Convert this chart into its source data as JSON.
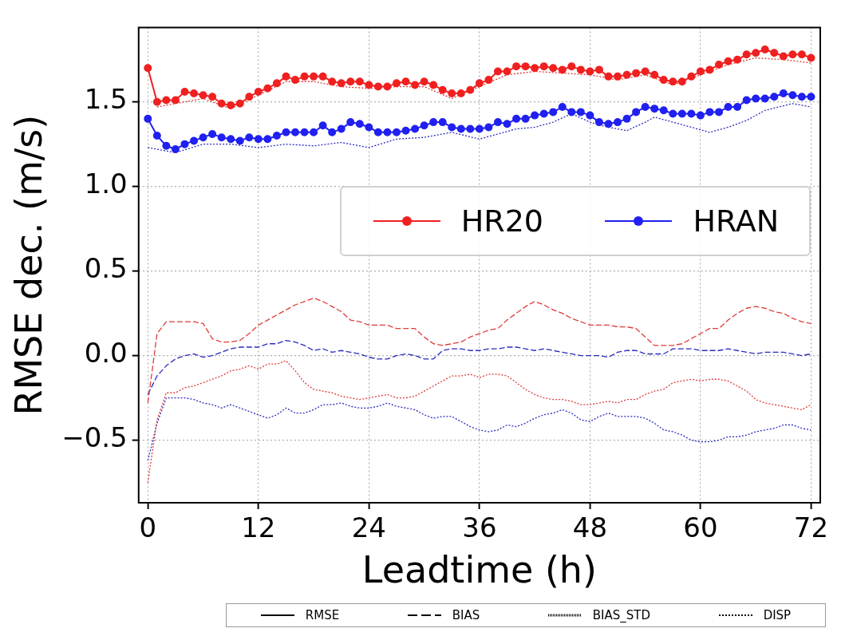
{
  "chart_data": {
    "type": "line",
    "xlabel": "Leadtime (h)",
    "ylabel": "RMSE dec. (m/s)",
    "xlim": [
      -1,
      73
    ],
    "xticks": [
      0,
      12,
      24,
      36,
      48,
      60,
      72
    ],
    "ylim": [
      -0.87,
      1.94
    ],
    "yticks": [
      {
        "value": -0.5,
        "label": "−0.5"
      },
      {
        "value": 0,
        "label": "0.0"
      },
      {
        "value": 0.5,
        "label": "0.5"
      },
      {
        "value": 1,
        "label": "1.0"
      },
      {
        "value": 1.5,
        "label": "1.5"
      }
    ],
    "grid": true,
    "legend": "center right",
    "annotations": [
      "RMSE",
      "BIAS",
      "BIAS_STD",
      "DISP"
    ],
    "series": [
      {
        "name": "HR20",
        "color": "#f02020",
        "line_style": "solid",
        "marker": "circle",
        "x": [
          0,
          1,
          2,
          3,
          4,
          5,
          6,
          7,
          8,
          9,
          10,
          11,
          12,
          13,
          14,
          15,
          16,
          17,
          18,
          19,
          20,
          21,
          22,
          23,
          24,
          25,
          26,
          27,
          28,
          29,
          30,
          31,
          32,
          33,
          34,
          35,
          36,
          37,
          38,
          39,
          40,
          41,
          42,
          43,
          44,
          45,
          46,
          47,
          48,
          49,
          50,
          51,
          52,
          53,
          54,
          55,
          56,
          57,
          58,
          59,
          60,
          61,
          62,
          63,
          64,
          65,
          66,
          67,
          68,
          69,
          70,
          71,
          72
        ],
        "values": [
          1.7,
          1.5,
          1.51,
          1.51,
          1.56,
          1.55,
          1.54,
          1.53,
          1.49,
          1.48,
          1.49,
          1.53,
          1.56,
          1.58,
          1.61,
          1.65,
          1.63,
          1.65,
          1.65,
          1.65,
          1.62,
          1.61,
          1.62,
          1.62,
          1.6,
          1.59,
          1.59,
          1.61,
          1.62,
          1.6,
          1.62,
          1.6,
          1.57,
          1.55,
          1.55,
          1.57,
          1.61,
          1.63,
          1.68,
          1.68,
          1.71,
          1.71,
          1.7,
          1.71,
          1.7,
          1.69,
          1.71,
          1.69,
          1.68,
          1.69,
          1.65,
          1.65,
          1.66,
          1.67,
          1.68,
          1.66,
          1.63,
          1.62,
          1.62,
          1.65,
          1.68,
          1.69,
          1.72,
          1.74,
          1.75,
          1.78,
          1.79,
          1.81,
          1.79,
          1.77,
          1.78,
          1.78,
          1.76
        ]
      },
      {
        "name": "HRAN",
        "color": "#2020f0",
        "line_style": "solid",
        "marker": "circle",
        "x": [
          0,
          1,
          2,
          3,
          4,
          5,
          6,
          7,
          8,
          9,
          10,
          11,
          12,
          13,
          14,
          15,
          16,
          17,
          18,
          19,
          20,
          21,
          22,
          23,
          24,
          25,
          26,
          27,
          28,
          29,
          30,
          31,
          32,
          33,
          34,
          35,
          36,
          37,
          38,
          39,
          40,
          41,
          42,
          43,
          44,
          45,
          46,
          47,
          48,
          49,
          50,
          51,
          52,
          53,
          54,
          55,
          56,
          57,
          58,
          59,
          60,
          61,
          62,
          63,
          64,
          65,
          66,
          67,
          68,
          69,
          70,
          71,
          72
        ],
        "values": [
          1.4,
          1.3,
          1.24,
          1.22,
          1.25,
          1.27,
          1.29,
          1.31,
          1.29,
          1.28,
          1.27,
          1.29,
          1.28,
          1.28,
          1.3,
          1.32,
          1.32,
          1.32,
          1.32,
          1.36,
          1.32,
          1.34,
          1.38,
          1.37,
          1.35,
          1.32,
          1.32,
          1.32,
          1.33,
          1.34,
          1.36,
          1.38,
          1.38,
          1.35,
          1.34,
          1.34,
          1.34,
          1.35,
          1.38,
          1.37,
          1.4,
          1.4,
          1.42,
          1.43,
          1.44,
          1.47,
          1.44,
          1.44,
          1.42,
          1.38,
          1.37,
          1.38,
          1.4,
          1.44,
          1.47,
          1.46,
          1.45,
          1.43,
          1.43,
          1.43,
          1.42,
          1.44,
          1.44,
          1.47,
          1.47,
          1.51,
          1.52,
          1.52,
          1.53,
          1.55,
          1.54,
          1.53,
          1.53
        ]
      },
      {
        "color": "#e03a3a",
        "line_style": "dashed",
        "marker": "none",
        "x": [
          0,
          1,
          2,
          3,
          4,
          5,
          6,
          7,
          8,
          9,
          10,
          11,
          12,
          13,
          14,
          15,
          16,
          17,
          18,
          19,
          20,
          21,
          22,
          23,
          24,
          25,
          26,
          27,
          28,
          29,
          30,
          31,
          32,
          33,
          34,
          35,
          36,
          37,
          38,
          39,
          40,
          41,
          42,
          43,
          44,
          45,
          46,
          47,
          48,
          49,
          50,
          51,
          52,
          53,
          54,
          55,
          56,
          57,
          58,
          59,
          60,
          61,
          62,
          63,
          64,
          65,
          66,
          67,
          68,
          69,
          70,
          71,
          72
        ],
        "values": [
          -0.28,
          0.13,
          0.2,
          0.2,
          0.2,
          0.2,
          0.19,
          0.1,
          0.08,
          0.08,
          0.09,
          0.13,
          0.18,
          0.21,
          0.24,
          0.27,
          0.3,
          0.32,
          0.34,
          0.32,
          0.29,
          0.26,
          0.21,
          0.2,
          0.18,
          0.18,
          0.18,
          0.16,
          0.16,
          0.16,
          0.11,
          0.07,
          0.06,
          0.07,
          0.08,
          0.11,
          0.13,
          0.15,
          0.16,
          0.21,
          0.25,
          0.29,
          0.32,
          0.3,
          0.27,
          0.25,
          0.22,
          0.2,
          0.18,
          0.18,
          0.18,
          0.17,
          0.17,
          0.16,
          0.11,
          0.06,
          0.06,
          0.06,
          0.07,
          0.1,
          0.13,
          0.16,
          0.16,
          0.21,
          0.25,
          0.28,
          0.29,
          0.28,
          0.26,
          0.25,
          0.22,
          0.2,
          0.19
        ]
      },
      {
        "color": "#2a2ac0",
        "line_style": "dashed",
        "marker": "none",
        "x": [
          0,
          1,
          2,
          3,
          4,
          5,
          6,
          7,
          8,
          9,
          10,
          11,
          12,
          13,
          14,
          15,
          16,
          17,
          18,
          19,
          20,
          21,
          22,
          23,
          24,
          25,
          26,
          27,
          28,
          29,
          30,
          31,
          32,
          33,
          34,
          35,
          36,
          37,
          38,
          39,
          40,
          41,
          42,
          43,
          44,
          45,
          46,
          47,
          48,
          49,
          50,
          51,
          52,
          53,
          54,
          55,
          56,
          57,
          58,
          59,
          60,
          61,
          62,
          63,
          64,
          65,
          66,
          67,
          68,
          69,
          70,
          71,
          72
        ],
        "values": [
          -0.23,
          -0.12,
          -0.06,
          -0.02,
          0.0,
          0.01,
          -0.01,
          0.0,
          0.02,
          0.04,
          0.05,
          0.05,
          0.05,
          0.07,
          0.07,
          0.09,
          0.08,
          0.06,
          0.03,
          0.04,
          0.02,
          0.03,
          0.02,
          0.01,
          -0.01,
          -0.02,
          -0.02,
          0.0,
          0.01,
          0.0,
          -0.02,
          -0.02,
          0.03,
          0.04,
          0.04,
          0.03,
          0.03,
          0.04,
          0.04,
          0.05,
          0.05,
          0.04,
          0.03,
          0.04,
          0.03,
          0.02,
          0.01,
          0.0,
          0.0,
          0.0,
          -0.01,
          0.02,
          0.03,
          0.03,
          0.01,
          0.01,
          0.01,
          0.04,
          0.04,
          0.04,
          0.03,
          0.03,
          0.03,
          0.04,
          0.03,
          0.02,
          0.01,
          0.02,
          0.02,
          0.02,
          0.01,
          0.0,
          0.01
        ]
      },
      {
        "color": "#e03a3a",
        "line_style": "dotted",
        "marker": "none",
        "x": [
          1,
          3,
          6,
          9,
          12,
          15,
          18,
          21,
          24,
          27,
          30,
          33,
          36,
          39,
          42,
          45,
          48,
          51,
          54,
          57,
          60,
          63,
          66,
          69,
          72
        ],
        "values": [
          1.47,
          1.49,
          1.52,
          1.46,
          1.54,
          1.62,
          1.62,
          1.59,
          1.58,
          1.59,
          1.59,
          1.52,
          1.59,
          1.66,
          1.68,
          1.67,
          1.66,
          1.63,
          1.66,
          1.6,
          1.66,
          1.72,
          1.76,
          1.75,
          1.73
        ]
      },
      {
        "color": "#2a2ac0",
        "line_style": "dotted",
        "marker": "none",
        "x": [
          0,
          3,
          6,
          9,
          12,
          15,
          18,
          21,
          24,
          27,
          30,
          33,
          36,
          38,
          40,
          42,
          44,
          46,
          48,
          50,
          52,
          54,
          55,
          57,
          59,
          61,
          63,
          65,
          67,
          70,
          72
        ],
        "values": [
          1.23,
          1.2,
          1.25,
          1.25,
          1.23,
          1.25,
          1.24,
          1.26,
          1.23,
          1.28,
          1.29,
          1.32,
          1.28,
          1.31,
          1.34,
          1.35,
          1.38,
          1.43,
          1.38,
          1.35,
          1.33,
          1.38,
          1.41,
          1.38,
          1.35,
          1.32,
          1.35,
          1.39,
          1.45,
          1.49,
          1.47
        ]
      },
      {
        "color": "#e03a3a",
        "line_style": "dotted",
        "marker": "none",
        "x": [
          0,
          1,
          2,
          3,
          4,
          5,
          6,
          7,
          8,
          9,
          10,
          11,
          12,
          13,
          14,
          15,
          16,
          17,
          18,
          19,
          20,
          21,
          22,
          23,
          24,
          25,
          26,
          27,
          28,
          29,
          30,
          31,
          32,
          33,
          34,
          35,
          36,
          37,
          38,
          39,
          40,
          41,
          42,
          43,
          44,
          45,
          46,
          47,
          48,
          49,
          50,
          51,
          52,
          53,
          54,
          55,
          56,
          57,
          58,
          59,
          60,
          61,
          62,
          63,
          64,
          65,
          66,
          67,
          68,
          69,
          70,
          71,
          72
        ],
        "values": [
          -0.75,
          -0.38,
          -0.22,
          -0.22,
          -0.19,
          -0.18,
          -0.16,
          -0.14,
          -0.12,
          -0.09,
          -0.08,
          -0.06,
          -0.08,
          -0.05,
          -0.05,
          -0.03,
          -0.09,
          -0.16,
          -0.2,
          -0.21,
          -0.22,
          -0.24,
          -0.25,
          -0.26,
          -0.25,
          -0.24,
          -0.23,
          -0.25,
          -0.25,
          -0.24,
          -0.21,
          -0.18,
          -0.15,
          -0.12,
          -0.12,
          -0.11,
          -0.13,
          -0.11,
          -0.11,
          -0.12,
          -0.16,
          -0.2,
          -0.23,
          -0.25,
          -0.26,
          -0.26,
          -0.27,
          -0.29,
          -0.29,
          -0.28,
          -0.27,
          -0.28,
          -0.26,
          -0.26,
          -0.23,
          -0.21,
          -0.2,
          -0.16,
          -0.15,
          -0.14,
          -0.15,
          -0.14,
          -0.14,
          -0.15,
          -0.18,
          -0.21,
          -0.26,
          -0.28,
          -0.29,
          -0.3,
          -0.31,
          -0.32,
          -0.29
        ]
      },
      {
        "color": "#2a2ac0",
        "line_style": "dotted",
        "marker": "none",
        "x": [
          0,
          1,
          2,
          3,
          4,
          5,
          6,
          7,
          8,
          9,
          10,
          11,
          12,
          13,
          14,
          15,
          16,
          17,
          18,
          19,
          20,
          21,
          22,
          23,
          24,
          25,
          26,
          27,
          28,
          29,
          30,
          31,
          32,
          33,
          34,
          35,
          36,
          37,
          38,
          39,
          40,
          41,
          42,
          43,
          44,
          45,
          46,
          47,
          48,
          49,
          50,
          51,
          52,
          53,
          54,
          55,
          56,
          57,
          58,
          59,
          60,
          61,
          62,
          63,
          64,
          65,
          66,
          67,
          68,
          69,
          70,
          71,
          72
        ],
        "values": [
          -0.62,
          -0.4,
          -0.25,
          -0.25,
          -0.25,
          -0.26,
          -0.28,
          -0.29,
          -0.31,
          -0.29,
          -0.31,
          -0.33,
          -0.35,
          -0.37,
          -0.35,
          -0.31,
          -0.34,
          -0.34,
          -0.32,
          -0.29,
          -0.29,
          -0.28,
          -0.3,
          -0.31,
          -0.31,
          -0.3,
          -0.28,
          -0.3,
          -0.31,
          -0.32,
          -0.35,
          -0.37,
          -0.36,
          -0.36,
          -0.39,
          -0.42,
          -0.44,
          -0.45,
          -0.44,
          -0.41,
          -0.42,
          -0.4,
          -0.37,
          -0.35,
          -0.34,
          -0.32,
          -0.34,
          -0.38,
          -0.39,
          -0.36,
          -0.34,
          -0.36,
          -0.36,
          -0.36,
          -0.37,
          -0.4,
          -0.44,
          -0.45,
          -0.47,
          -0.5,
          -0.51,
          -0.51,
          -0.5,
          -0.48,
          -0.48,
          -0.47,
          -0.45,
          -0.44,
          -0.43,
          -0.41,
          -0.41,
          -0.43,
          -0.44
        ]
      }
    ]
  }
}
